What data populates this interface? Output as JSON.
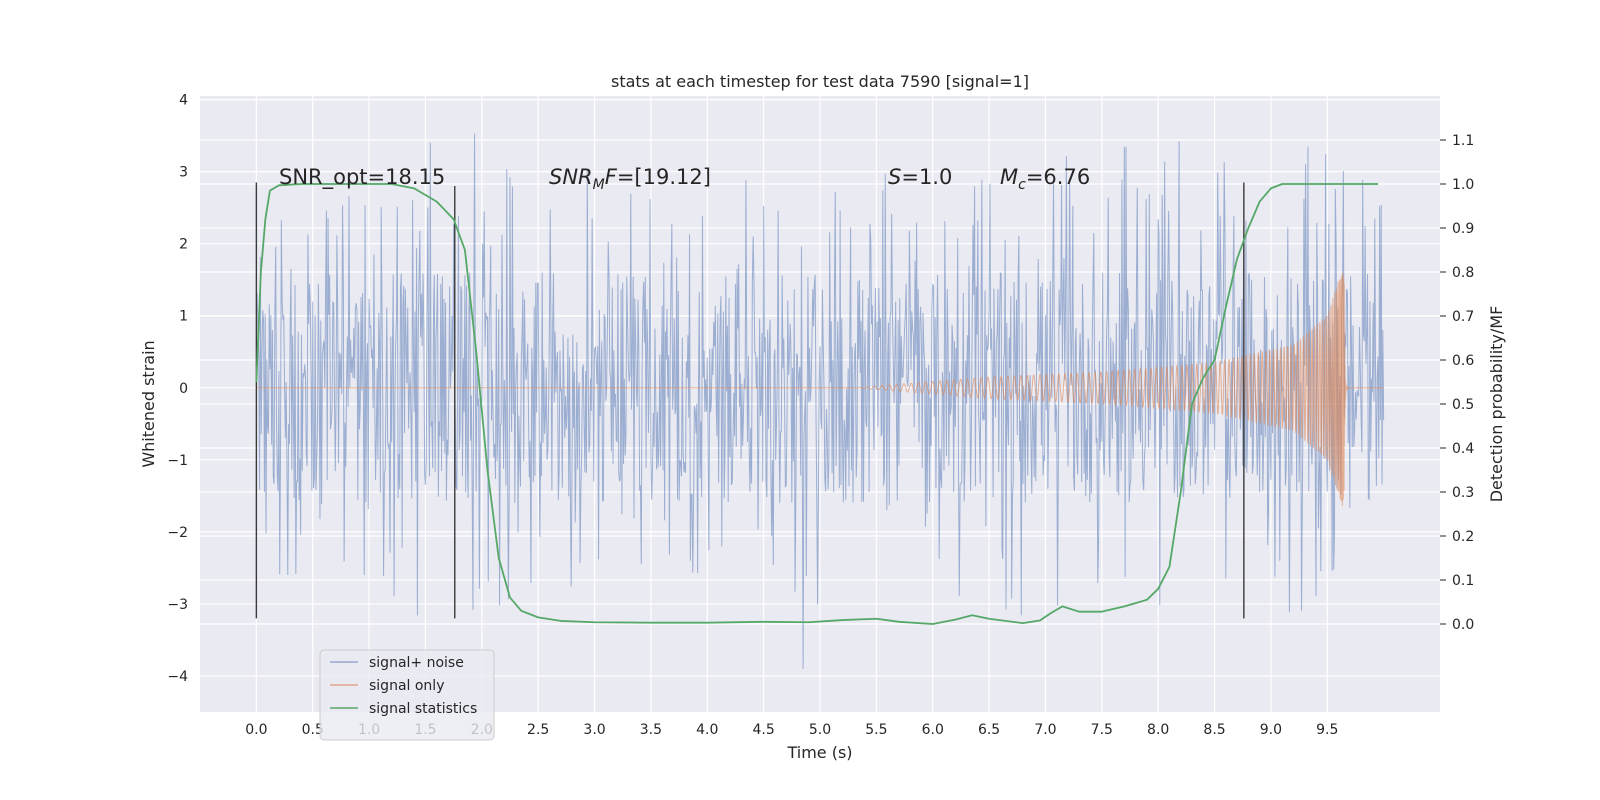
{
  "chart_data": {
    "type": "line",
    "title": "stats at each timestep for test data 7590 [signal=1]",
    "xlabel": "Time (s)",
    "ylabel_left": "Whitened strain",
    "ylabel_right": "Detection probability/MF",
    "xlim": [
      -0.5,
      10.5
    ],
    "ylim_left": [
      -4.5,
      4.05
    ],
    "ylim_right": [
      -0.2,
      1.2
    ],
    "x_ticks": [
      0.0,
      0.5,
      1.0,
      1.5,
      2.0,
      2.5,
      3.0,
      3.5,
      4.0,
      4.5,
      5.0,
      5.5,
      6.0,
      6.5,
      7.0,
      7.5,
      8.0,
      8.5,
      9.0,
      9.5
    ],
    "x_tick_labels": [
      "0.0",
      "0.5",
      "1.0",
      "1.5",
      "2.0",
      "2.5",
      "3.0",
      "3.5",
      "4.0",
      "4.5",
      "5.0",
      "5.5",
      "6.0",
      "6.5",
      "7.0",
      "7.5",
      "8.0",
      "8.5",
      "9.0",
      "9.5"
    ],
    "y_left_ticks": [
      4,
      3,
      2,
      1,
      0,
      -1,
      -2,
      -3,
      -4
    ],
    "y_left_tick_labels": [
      "4",
      "3",
      "2",
      "1",
      "0",
      "−1",
      "−2",
      "−3",
      "−4"
    ],
    "y_right_ticks": [
      1.1,
      1.0,
      0.9,
      0.8,
      0.7,
      0.6,
      0.5,
      0.4,
      0.3,
      0.2,
      0.1,
      0.0
    ],
    "y_right_tick_labels": [
      "1.1",
      "1.0",
      "0.9",
      "0.8",
      "0.7",
      "0.6",
      "0.5",
      "0.4",
      "0.3",
      "0.2",
      "0.1",
      "0.0"
    ],
    "grid": true,
    "legend_position": "lower-left",
    "series": [
      {
        "name": "signal+ noise",
        "color": "#4c72b0",
        "axis": "left",
        "x_range": [
          0.0,
          10.0
        ],
        "envelope_keypoints": [
          {
            "x": 0.0,
            "min": -1.8,
            "max": 2.0
          },
          {
            "x": 0.15,
            "min": -2.6,
            "max": 2.7
          },
          {
            "x": 1.0,
            "min": -2.8,
            "max": 3.0
          },
          {
            "x": 1.5,
            "min": -3.4,
            "max": 3.6
          },
          {
            "x": 1.95,
            "min": -3.3,
            "max": 3.65
          },
          {
            "x": 2.5,
            "min": -2.7,
            "max": 2.9
          },
          {
            "x": 3.0,
            "min": -2.8,
            "max": 3.1
          },
          {
            "x": 4.0,
            "min": -2.7,
            "max": 3.0
          },
          {
            "x": 4.95,
            "min": -4.05,
            "max": 2.9
          },
          {
            "x": 5.5,
            "min": -2.9,
            "max": 3.0
          },
          {
            "x": 6.8,
            "min": -3.2,
            "max": 3.1
          },
          {
            "x": 8.5,
            "min": -3.0,
            "max": 3.6
          },
          {
            "x": 9.5,
            "min": -3.3,
            "max": 3.3
          },
          {
            "x": 10.0,
            "min": -2.0,
            "max": 3.4
          }
        ]
      },
      {
        "name": "signal only",
        "color": "#dd8452",
        "axis": "left",
        "chirp_start": 5.3,
        "merger_time": 9.65,
        "envelope_keypoints": [
          {
            "x": 0.0,
            "amp": 0.0
          },
          {
            "x": 5.3,
            "amp": 0.0
          },
          {
            "x": 6.5,
            "amp": 0.15
          },
          {
            "x": 7.5,
            "amp": 0.22
          },
          {
            "x": 8.5,
            "amp": 0.35
          },
          {
            "x": 9.2,
            "amp": 0.6
          },
          {
            "x": 9.5,
            "amp": 1.0
          },
          {
            "x": 9.65,
            "amp": 1.75
          },
          {
            "x": 9.7,
            "amp": 0.02
          },
          {
            "x": 10.0,
            "amp": 0.0
          }
        ]
      },
      {
        "name": "signal statistics",
        "color": "#55a868",
        "axis": "right",
        "x": [
          0.0,
          0.04,
          0.08,
          0.12,
          0.2,
          0.4,
          0.8,
          1.2,
          1.4,
          1.6,
          1.75,
          1.85,
          1.95,
          2.05,
          2.15,
          2.25,
          2.35,
          2.5,
          2.7,
          3.0,
          3.5,
          4.0,
          4.5,
          4.9,
          5.2,
          5.5,
          5.7,
          6.0,
          6.2,
          6.35,
          6.5,
          6.8,
          6.95,
          7.05,
          7.15,
          7.3,
          7.5,
          7.7,
          7.9,
          8.0,
          8.1,
          8.2,
          8.3,
          8.4,
          8.5,
          8.6,
          8.7,
          8.8,
          8.9,
          9.0,
          9.1,
          9.3,
          9.5,
          9.95
        ],
        "values": [
          0.55,
          0.8,
          0.92,
          0.985,
          0.997,
          1.0,
          1.0,
          1.0,
          0.99,
          0.96,
          0.92,
          0.85,
          0.62,
          0.35,
          0.15,
          0.06,
          0.03,
          0.015,
          0.007,
          0.004,
          0.003,
          0.003,
          0.005,
          0.004,
          0.009,
          0.012,
          0.005,
          0.0,
          0.01,
          0.02,
          0.012,
          0.002,
          0.008,
          0.025,
          0.04,
          0.028,
          0.028,
          0.04,
          0.055,
          0.08,
          0.13,
          0.3,
          0.5,
          0.56,
          0.6,
          0.72,
          0.83,
          0.9,
          0.96,
          0.99,
          1.0,
          1.0,
          1.0,
          1.0
        ]
      }
    ],
    "vertical_lines": [
      {
        "x": 0.0,
        "y_range": [
          -3.2,
          2.85
        ]
      },
      {
        "x": 1.76,
        "y_range": [
          -3.2,
          2.8
        ]
      },
      {
        "x": 8.76,
        "y_range": [
          -3.2,
          2.85
        ]
      }
    ],
    "annotations": [
      {
        "text": "SNR_opt=18.15",
        "type": "plain"
      },
      {
        "type": "snr_mf",
        "base": "SNR",
        "sub": "M",
        "suffix": "F=[19.12]"
      },
      {
        "type": "s_value",
        "base": "S",
        "suffix": "=1.0"
      },
      {
        "type": "mc",
        "base": "M",
        "sub": "c",
        "suffix": "=6.76"
      }
    ],
    "colors": {
      "axes_bg": "#eaeaf2",
      "grid": "#ffffff",
      "vline": "#3a3a3a"
    }
  }
}
